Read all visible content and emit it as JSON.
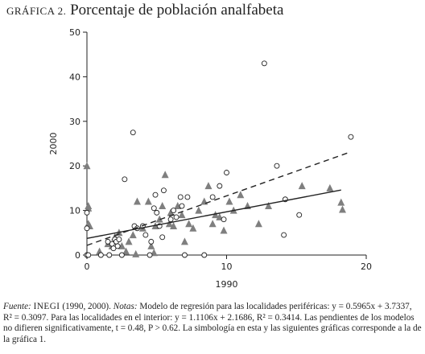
{
  "title": {
    "label": "GRÁFICA 2.",
    "text": "Porcentaje de población analfabeta"
  },
  "note": {
    "source_label": "Fuente:",
    "source_org": "INEGI",
    "source_years": "(1990, 2000).",
    "notes_label": "Notas:",
    "text": "Modelo de regresión para las localidades periféricas: y = 0.5965x + 3.7337, R² = 0.3097. Para las localidades en el interior: y = 1.1106x + 2.1686, R² = 0.3414. Las pendientes de los modelos no difieren significativamente, t = 0.48, P > 0.62. La simbología en esta y las siguientes gráficas corresponde a la de la gráfica 1."
  },
  "chart_data": {
    "type": "scatter",
    "title": "Porcentaje de población analfabeta",
    "xlabel": "1990",
    "ylabel": "2000",
    "xlim": [
      0,
      20
    ],
    "ylim": [
      0,
      50
    ],
    "xticks": [
      "0",
      "10",
      "20"
    ],
    "yticks": [
      "0",
      "10",
      "20",
      "30",
      "40",
      "50"
    ],
    "grid": false,
    "series": [
      {
        "marker": "triangle",
        "color": "#7f7f7f",
        "points": [
          [
            0.0,
            20.0
          ],
          [
            0.1,
            11.0
          ],
          [
            0.1,
            10.5
          ],
          [
            0.1,
            7.0
          ],
          [
            0.2,
            6.5
          ],
          [
            0.9,
            0.8
          ],
          [
            1.5,
            2.5
          ],
          [
            1.8,
            2.0
          ],
          [
            2.0,
            4.0
          ],
          [
            2.3,
            5.0
          ],
          [
            2.5,
            2.0
          ],
          [
            2.8,
            0.8
          ],
          [
            3.0,
            3.0
          ],
          [
            3.3,
            4.5
          ],
          [
            3.6,
            12.0
          ],
          [
            4.0,
            6.0
          ],
          [
            4.4,
            12.0
          ],
          [
            4.6,
            2.0
          ],
          [
            4.9,
            6.5
          ],
          [
            5.2,
            8.0
          ],
          [
            5.4,
            11.0
          ],
          [
            5.6,
            18.0
          ],
          [
            5.9,
            7.0
          ],
          [
            6.0,
            9.5
          ],
          [
            6.2,
            6.5
          ],
          [
            6.5,
            11.0
          ],
          [
            6.8,
            9.0
          ],
          [
            7.0,
            3.0
          ],
          [
            7.3,
            7.0
          ],
          [
            7.6,
            6.0
          ],
          [
            8.0,
            10.0
          ],
          [
            8.4,
            12.0
          ],
          [
            8.7,
            15.5
          ],
          [
            9.0,
            7.0
          ],
          [
            9.2,
            9.0
          ],
          [
            9.5,
            8.5
          ],
          [
            9.8,
            5.5
          ],
          [
            10.2,
            12.0
          ],
          [
            10.5,
            10.0
          ],
          [
            11.0,
            13.5
          ],
          [
            11.5,
            11.0
          ],
          [
            12.3,
            7.0
          ],
          [
            13.0,
            11.0
          ],
          [
            15.4,
            15.5
          ],
          [
            17.4,
            15.0
          ],
          [
            18.2,
            11.8
          ],
          [
            18.3,
            10.2
          ],
          [
            3.5,
            0.2
          ],
          [
            4.8,
            0.5
          ]
        ]
      },
      {
        "marker": "open-circle",
        "color": "#222222",
        "points": [
          [
            0.0,
            9.5
          ],
          [
            0.0,
            6.0
          ],
          [
            0.0,
            0.0
          ],
          [
            0.1,
            0.0
          ],
          [
            1.0,
            0.0
          ],
          [
            1.5,
            3.0
          ],
          [
            1.6,
            0.0
          ],
          [
            1.8,
            2.5
          ],
          [
            1.9,
            1.5
          ],
          [
            2.0,
            3.5
          ],
          [
            2.1,
            3.0
          ],
          [
            2.2,
            2.0
          ],
          [
            2.3,
            3.5
          ],
          [
            2.5,
            0.0
          ],
          [
            2.7,
            17.0
          ],
          [
            3.3,
            27.5
          ],
          [
            3.4,
            6.5
          ],
          [
            3.6,
            6.0
          ],
          [
            4.0,
            6.5
          ],
          [
            4.2,
            4.5
          ],
          [
            4.5,
            0.0
          ],
          [
            4.6,
            3.0
          ],
          [
            4.8,
            10.5
          ],
          [
            4.9,
            13.5
          ],
          [
            5.0,
            9.5
          ],
          [
            5.2,
            6.5
          ],
          [
            5.4,
            4.0
          ],
          [
            5.5,
            14.5
          ],
          [
            6.0,
            8.0
          ],
          [
            6.2,
            10.0
          ],
          [
            6.4,
            8.5
          ],
          [
            6.7,
            13.0
          ],
          [
            6.8,
            11.0
          ],
          [
            7.0,
            0.0
          ],
          [
            7.2,
            13.0
          ],
          [
            8.4,
            0.0
          ],
          [
            9.0,
            13.0
          ],
          [
            9.5,
            15.5
          ],
          [
            9.8,
            8.0
          ],
          [
            10.0,
            18.5
          ],
          [
            12.7,
            43.0
          ],
          [
            13.6,
            20.0
          ],
          [
            14.1,
            4.5
          ],
          [
            14.2,
            12.5
          ],
          [
            15.2,
            9.0
          ],
          [
            18.9,
            26.5
          ]
        ]
      }
    ],
    "regression_lines": [
      {
        "style": "solid",
        "slope": 0.5965,
        "intercept": 3.7337,
        "x_range": [
          0,
          18.2
        ]
      },
      {
        "style": "dashed",
        "slope": 1.1106,
        "intercept": 2.1686,
        "x_range": [
          0,
          18.9
        ]
      }
    ]
  }
}
